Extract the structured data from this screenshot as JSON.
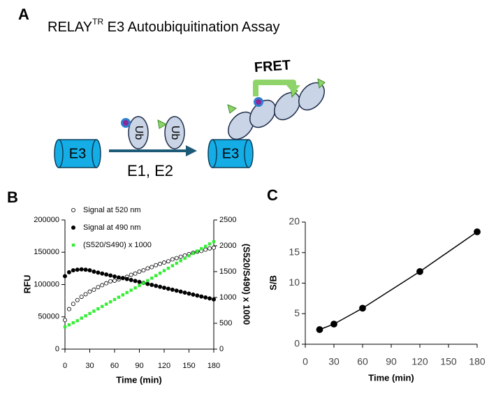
{
  "figure": {
    "panel_a": {
      "label": "A",
      "title": "RELAY",
      "title_superscript": "TR",
      "title_rest": " E3 Autoubiquitination Assay",
      "e3_left": "E3",
      "e3_right": "E3",
      "ub_1": "Ub",
      "ub_2": "Ub",
      "reaction": "E1, E2",
      "fret": "FRET"
    }
  },
  "chart_data": [
    {
      "type": "scatter",
      "panel_label": "B",
      "xlabel": "Time (min)",
      "ylabel": "RFU",
      "y2label": "(S520/S490) x 1000",
      "x": [
        0,
        5,
        10,
        15,
        20,
        25,
        30,
        35,
        40,
        45,
        50,
        55,
        60,
        65,
        70,
        75,
        80,
        85,
        90,
        95,
        100,
        105,
        110,
        115,
        120,
        125,
        130,
        135,
        140,
        145,
        150,
        155,
        160,
        165,
        170,
        175,
        180
      ],
      "xlim": [
        0,
        180
      ],
      "xticks": [
        0,
        30,
        60,
        90,
        120,
        150,
        180
      ],
      "ylim": [
        0,
        200000
      ],
      "yticks": [
        0,
        50000,
        100000,
        150000,
        200000
      ],
      "y2lim": [
        0,
        2500
      ],
      "y2ticks": [
        0,
        500,
        1000,
        1500,
        2000,
        2500
      ],
      "legend": "upper left",
      "series": [
        {
          "name": "Signal at 520 nm",
          "color": "#000000",
          "marker": "open-circle",
          "values": [
            45000,
            62000,
            70000,
            76000,
            81000,
            85000,
            89000,
            92000,
            96000,
            99000,
            102000,
            105000,
            106000,
            108000,
            110000,
            112000,
            115000,
            117000,
            120000,
            122000,
            125000,
            127000,
            130000,
            132000,
            134000,
            136000,
            139000,
            141000,
            143000,
            145000,
            147000,
            149000,
            151000,
            152000,
            154000,
            156000,
            157000
          ]
        },
        {
          "name": "Signal at 490 nm",
          "color": "#000000",
          "marker": "circle",
          "values": [
            113000,
            119000,
            122000,
            123000,
            123500,
            123000,
            122000,
            120000,
            118500,
            117000,
            115500,
            114000,
            112500,
            111000,
            110000,
            108500,
            107000,
            105500,
            104000,
            102500,
            101000,
            99500,
            98000,
            96500,
            95000,
            93500,
            92000,
            90500,
            89000,
            87500,
            86000,
            84500,
            83000,
            81500,
            80000,
            78500,
            77000
          ]
        },
        {
          "name": "(S520/S490) x 1000",
          "color": "#33ee33",
          "marker": "square",
          "axis": "y2",
          "values": [
            430,
            470,
            510,
            550,
            600,
            645,
            690,
            735,
            780,
            825,
            870,
            915,
            960,
            1005,
            1050,
            1095,
            1140,
            1185,
            1230,
            1278,
            1326,
            1374,
            1422,
            1470,
            1518,
            1566,
            1614,
            1662,
            1710,
            1758,
            1806,
            1852,
            1898,
            1944,
            1990,
            2036,
            2080
          ]
        }
      ]
    },
    {
      "type": "line",
      "panel_label": "C",
      "xlabel": "Time (min)",
      "ylabel": "S/B",
      "x": [
        15,
        30,
        60,
        120,
        180
      ],
      "xlim": [
        0,
        180
      ],
      "xticks": [
        0,
        30,
        60,
        90,
        120,
        150,
        180
      ],
      "ylim": [
        0,
        20
      ],
      "yticks": [
        0,
        5,
        10,
        15,
        20
      ],
      "series": [
        {
          "color": "#000000",
          "marker": "circle",
          "values": [
            2.4,
            3.3,
            5.9,
            11.9,
            18.4
          ]
        }
      ]
    }
  ]
}
